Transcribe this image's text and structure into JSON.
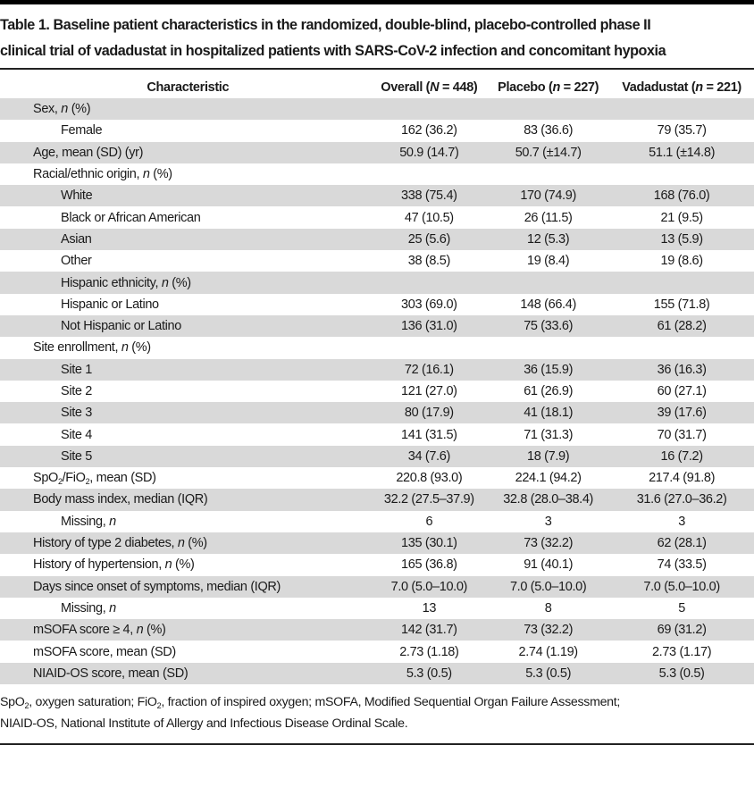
{
  "caption": {
    "label": "Table 1.",
    "line1": "Table 1. Baseline patient characteristics in the randomized, double-blind, placebo-controlled phase II",
    "line2": "clinical trial of vadadustat in hospitalized patients with SARS-CoV-2 infection and concomitant hypoxia"
  },
  "table": {
    "headers": [
      "Characteristic",
      "Overall (N = 448)",
      "Placebo (n = 227)",
      "Vadadustat (n = 221)"
    ],
    "rows": [
      {
        "label": "Sex, n (%)",
        "level": 0,
        "shade": true,
        "values": [
          "",
          "",
          ""
        ]
      },
      {
        "label": "Female",
        "level": 1,
        "shade": false,
        "values": [
          "162 (36.2)",
          "83 (36.6)",
          "79 (35.7)"
        ]
      },
      {
        "label": "Age, mean (SD) (yr)",
        "level": 0,
        "shade": true,
        "values": [
          "50.9 (14.7)",
          "50.7 (±14.7)",
          "51.1 (±14.8)"
        ]
      },
      {
        "label": "Racial/ethnic origin, n (%)",
        "level": 0,
        "shade": false,
        "values": [
          "",
          "",
          ""
        ]
      },
      {
        "label": "White",
        "level": 1,
        "shade": true,
        "values": [
          "338 (75.4)",
          "170 (74.9)",
          "168 (76.0)"
        ]
      },
      {
        "label": "Black or African American",
        "level": 1,
        "shade": false,
        "values": [
          "47 (10.5)",
          "26 (11.5)",
          "21 (9.5)"
        ]
      },
      {
        "label": "Asian",
        "level": 1,
        "shade": true,
        "values": [
          "25 (5.6)",
          "12 (5.3)",
          "13 (5.9)"
        ]
      },
      {
        "label": "Other",
        "level": 1,
        "shade": false,
        "values": [
          "38 (8.5)",
          "19 (8.4)",
          "19 (8.6)"
        ]
      },
      {
        "label": "Hispanic ethnicity, n (%)",
        "level": 1,
        "shade": true,
        "values": [
          "",
          "",
          ""
        ]
      },
      {
        "label": "Hispanic or Latino",
        "level": 1,
        "shade": false,
        "values": [
          "303 (69.0)",
          "148 (66.4)",
          "155 (71.8)"
        ]
      },
      {
        "label": "Not Hispanic or Latino",
        "level": 1,
        "shade": true,
        "values": [
          "136 (31.0)",
          "75 (33.6)",
          "61 (28.2)"
        ]
      },
      {
        "label": "Site enrollment, n (%)",
        "level": 0,
        "shade": false,
        "values": [
          "",
          "",
          ""
        ]
      },
      {
        "label": "Site 1",
        "level": 1,
        "shade": true,
        "values": [
          "72 (16.1)",
          "36 (15.9)",
          "36 (16.3)"
        ]
      },
      {
        "label": "Site 2",
        "level": 1,
        "shade": false,
        "values": [
          "121 (27.0)",
          "61 (26.9)",
          "60 (27.1)"
        ]
      },
      {
        "label": "Site 3",
        "level": 1,
        "shade": true,
        "values": [
          "80 (17.9)",
          "41 (18.1)",
          "39 (17.6)"
        ]
      },
      {
        "label": "Site 4",
        "level": 1,
        "shade": false,
        "values": [
          "141 (31.5)",
          "71 (31.3)",
          "70 (31.7)"
        ]
      },
      {
        "label": "Site 5",
        "level": 1,
        "shade": true,
        "values": [
          "34 (7.6)",
          "18 (7.9)",
          "16 (7.2)"
        ]
      },
      {
        "label": "SpO2/FiO2, mean (SD)",
        "level": 0,
        "shade": false,
        "values": [
          "220.8 (93.0)",
          "224.1 (94.2)",
          "217.4 (91.8)"
        ]
      },
      {
        "label": "Body mass index, median (IQR)",
        "level": 0,
        "shade": true,
        "values": [
          "32.2 (27.5–37.9)",
          "32.8 (28.0–38.4)",
          "31.6 (27.0–36.2)"
        ]
      },
      {
        "label": "Missing, n",
        "level": 1,
        "shade": false,
        "values": [
          "6",
          "3",
          "3"
        ]
      },
      {
        "label": "History of type 2 diabetes, n (%)",
        "level": 0,
        "shade": true,
        "values": [
          "135 (30.1)",
          "73 (32.2)",
          "62 (28.1)"
        ]
      },
      {
        "label": "History of hypertension, n (%)",
        "level": 0,
        "shade": false,
        "values": [
          "165 (36.8)",
          "91 (40.1)",
          "74 (33.5)"
        ]
      },
      {
        "label": "Days since onset of symptoms, median (IQR)",
        "level": 0,
        "shade": true,
        "values": [
          "7.0 (5.0–10.0)",
          "7.0 (5.0–10.0)",
          "7.0 (5.0–10.0)"
        ]
      },
      {
        "label": "Missing, n",
        "level": 1,
        "shade": false,
        "values": [
          "13",
          "8",
          "5"
        ]
      },
      {
        "label": "mSOFA score ≥ 4, n (%)",
        "level": 0,
        "shade": true,
        "values": [
          "142 (31.7)",
          "73 (32.2)",
          "69 (31.2)"
        ]
      },
      {
        "label": "mSOFA score, mean (SD)",
        "level": 0,
        "shade": false,
        "values": [
          "2.73 (1.18)",
          "2.74 (1.19)",
          "2.73 (1.17)"
        ]
      },
      {
        "label": "NIAID-OS score, mean (SD)",
        "level": 0,
        "shade": true,
        "values": [
          "5.3 (0.5)",
          "5.3 (0.5)",
          "5.3 (0.5)"
        ]
      }
    ]
  },
  "footnote": {
    "line1": "SpO2, oxygen saturation; FiO2, fraction of inspired oxygen; mSOFA, Modified Sequential Organ Failure Assessment;",
    "line2": "NIAID-OS, National Institute of Allergy and Infectious Disease Ordinal Scale."
  },
  "colors": {
    "shade_row": "#d9d9d9",
    "rule": "#222222",
    "text": "#1a1a1a"
  }
}
